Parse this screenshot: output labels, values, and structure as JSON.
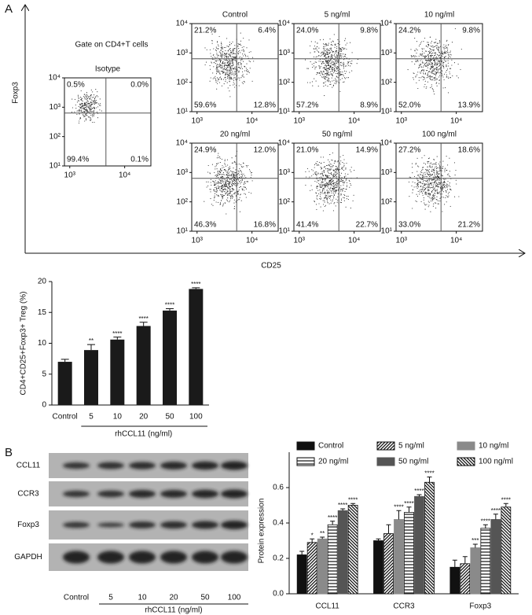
{
  "panels": [
    "A",
    "B"
  ],
  "shared_axes": {
    "y_label": "Foxp3",
    "x_label": "CD25"
  },
  "chart_data": [
    {
      "type": "flow",
      "title": "Isotype",
      "annotation": "Gate on CD4+T cells",
      "xscale": "log",
      "yscale": "log",
      "xlim": [
        800,
        30000
      ],
      "ylim": [
        10,
        10000
      ],
      "xticks": [
        {
          "value": 1000,
          "label": "10³"
        },
        {
          "value": 10000,
          "label": "10⁴"
        }
      ],
      "yticks": [
        {
          "value": 10,
          "label": "10¹"
        },
        {
          "value": 100,
          "label": "10²"
        },
        {
          "value": 1000,
          "label": "10³"
        },
        {
          "value": 10000,
          "label": "10⁴"
        }
      ],
      "values": [
        0.5,
        0.0,
        99.4,
        0.1
      ],
      "value_labels": [
        "0.5%",
        "0.0%",
        "99.4%",
        "0.1%"
      ]
    },
    {
      "type": "flow",
      "title": "Control",
      "xscale": "log",
      "yscale": "log",
      "xlim": [
        800,
        30000
      ],
      "ylim": [
        10,
        10000
      ],
      "xticks": [
        {
          "value": 1000,
          "label": "10³"
        },
        {
          "value": 10000,
          "label": "10⁴"
        }
      ],
      "yticks": [
        {
          "value": 10,
          "label": "10¹"
        },
        {
          "value": 100,
          "label": "10²"
        },
        {
          "value": 1000,
          "label": "10³"
        },
        {
          "value": 10000,
          "label": "10⁴"
        }
      ],
      "values": [
        21.2,
        6.4,
        59.6,
        12.8
      ],
      "value_labels": [
        "21.2%",
        "6.4%",
        "59.6%",
        "12.8%"
      ]
    },
    {
      "type": "flow",
      "title": "5 ng/ml",
      "xscale": "log",
      "yscale": "log",
      "xlim": [
        800,
        30000
      ],
      "ylim": [
        10,
        10000
      ],
      "xticks": [
        {
          "value": 1000,
          "label": "10³"
        },
        {
          "value": 10000,
          "label": "10⁴"
        }
      ],
      "yticks": [
        {
          "value": 10,
          "label": "10¹"
        },
        {
          "value": 100,
          "label": "10²"
        },
        {
          "value": 1000,
          "label": "10³"
        },
        {
          "value": 10000,
          "label": "10⁴"
        }
      ],
      "values": [
        24.0,
        9.8,
        57.2,
        8.9
      ],
      "value_labels": [
        "24.0%",
        "9.8%",
        "57.2%",
        "8.9%"
      ]
    },
    {
      "type": "flow",
      "title": "10 ng/ml",
      "xscale": "log",
      "yscale": "log",
      "xlim": [
        800,
        30000
      ],
      "ylim": [
        10,
        10000
      ],
      "xticks": [
        {
          "value": 1000,
          "label": "10³"
        },
        {
          "value": 10000,
          "label": "10⁴"
        }
      ],
      "yticks": [
        {
          "value": 10,
          "label": "10¹"
        },
        {
          "value": 100,
          "label": "10²"
        },
        {
          "value": 1000,
          "label": "10³"
        },
        {
          "value": 10000,
          "label": "10⁴"
        }
      ],
      "values": [
        24.2,
        9.8,
        52.0,
        13.9
      ],
      "value_labels": [
        "24.2%",
        "9.8%",
        "52.0%",
        "13.9%"
      ]
    },
    {
      "type": "flow",
      "title": "20 ng/ml",
      "xscale": "log",
      "yscale": "log",
      "xlim": [
        800,
        30000
      ],
      "ylim": [
        10,
        10000
      ],
      "xticks": [
        {
          "value": 1000,
          "label": "10³"
        },
        {
          "value": 10000,
          "label": "10⁴"
        }
      ],
      "yticks": [
        {
          "value": 10,
          "label": "10¹"
        },
        {
          "value": 100,
          "label": "10²"
        },
        {
          "value": 1000,
          "label": "10³"
        },
        {
          "value": 10000,
          "label": "10⁴"
        }
      ],
      "values": [
        24.9,
        12.0,
        46.3,
        16.8
      ],
      "value_labels": [
        "24.9%",
        "12.0%",
        "46.3%",
        "16.8%"
      ]
    },
    {
      "type": "flow",
      "title": "50 ng/ml",
      "xscale": "log",
      "yscale": "log",
      "xlim": [
        800,
        30000
      ],
      "ylim": [
        10,
        10000
      ],
      "xticks": [
        {
          "value": 1000,
          "label": "10³"
        },
        {
          "value": 10000,
          "label": "10⁴"
        }
      ],
      "yticks": [
        {
          "value": 10,
          "label": "10¹"
        },
        {
          "value": 100,
          "label": "10²"
        },
        {
          "value": 1000,
          "label": "10³"
        },
        {
          "value": 10000,
          "label": "10⁴"
        }
      ],
      "values": [
        21.0,
        14.9,
        41.4,
        22.7
      ],
      "value_labels": [
        "21.0%",
        "14.9%",
        "41.4%",
        "22.7%"
      ]
    },
    {
      "type": "flow",
      "title": "100 ng/ml",
      "xscale": "log",
      "yscale": "log",
      "xlim": [
        800,
        30000
      ],
      "ylim": [
        10,
        10000
      ],
      "xticks": [
        {
          "value": 1000,
          "label": "10³"
        },
        {
          "value": 10000,
          "label": "10⁴"
        }
      ],
      "yticks": [
        {
          "value": 10,
          "label": "10¹"
        },
        {
          "value": 100,
          "label": "10²"
        },
        {
          "value": 1000,
          "label": "10³"
        },
        {
          "value": 10000,
          "label": "10⁴"
        }
      ],
      "values": [
        27.2,
        18.6,
        33.0,
        21.2
      ],
      "value_labels": [
        "27.2%",
        "18.6%",
        "33.0%",
        "21.2%"
      ]
    },
    {
      "type": "bar",
      "ylabel": "CD4+CD25+Foxp3+ Treg (%)",
      "xlabel": "rhCCL11 (ng/ml)",
      "categories": [
        "Control",
        "5",
        "10",
        "20",
        "50",
        "100"
      ],
      "values": [
        7.0,
        8.9,
        10.6,
        12.8,
        15.3,
        18.8
      ],
      "errors": [
        0.4,
        0.9,
        0.4,
        0.6,
        0.3,
        0.2
      ],
      "annotations": [
        null,
        "**",
        "****",
        "****",
        "****",
        "****"
      ],
      "color": "#1a1a1a",
      "ylim": [
        0,
        20
      ],
      "yticks": [
        0,
        5,
        10,
        15,
        20
      ]
    },
    {
      "type": "grouped_bar",
      "ylabel": "Protein expression",
      "categories": [
        "CCL11",
        "CCR3",
        "Foxp3"
      ],
      "ylim": [
        0,
        0.8
      ],
      "yticks": [
        {
          "value": 0,
          "label": "0.0"
        },
        0.2,
        0.4,
        0.6
      ],
      "legend": "top",
      "series": [
        {
          "name": "Control",
          "color": "#111111",
          "values": [
            0.22,
            0.3,
            0.15
          ],
          "errors": [
            0.02,
            0.01,
            0.04
          ],
          "annotations": [
            null,
            null,
            null
          ]
        },
        {
          "name": "5 ng/ml",
          "color": "#111111",
          "pattern": "diagonal",
          "values": [
            0.29,
            0.34,
            0.17
          ],
          "errors": [
            0.02,
            0.05,
            0.04
          ],
          "annotations": [
            "*",
            null,
            null
          ]
        },
        {
          "name": "10 ng/ml",
          "color": "#8a8a8a",
          "values": [
            0.31,
            0.42,
            0.26
          ],
          "errors": [
            0.01,
            0.05,
            0.02
          ],
          "annotations": [
            "**",
            "****",
            "***"
          ]
        },
        {
          "name": "20 ng/ml",
          "color": "#111111",
          "pattern": "horizontal",
          "values": [
            0.39,
            0.46,
            0.37
          ],
          "errors": [
            0.02,
            0.03,
            0.02
          ],
          "annotations": [
            "****",
            "****",
            "****"
          ]
        },
        {
          "name": "50 ng/ml",
          "color": "#555555",
          "values": [
            0.47,
            0.55,
            0.42
          ],
          "errors": [
            0.01,
            0.01,
            0.03
          ],
          "annotations": [
            "****",
            "****",
            "****"
          ]
        },
        {
          "name": "100 ng/ml",
          "color": "#111111",
          "pattern": "back-diagonal",
          "values": [
            0.5,
            0.63,
            0.49
          ],
          "errors": [
            0.01,
            0.03,
            0.02
          ],
          "annotations": [
            "****",
            "****",
            "****"
          ]
        }
      ]
    }
  ],
  "blot": {
    "rows": [
      "CCL11",
      "CCR3",
      "Foxp3",
      "GAPDH"
    ],
    "lanes": [
      "Control",
      "5",
      "10",
      "20",
      "50",
      "100"
    ],
    "lane_label": "rhCCL11 (ng/ml)"
  }
}
